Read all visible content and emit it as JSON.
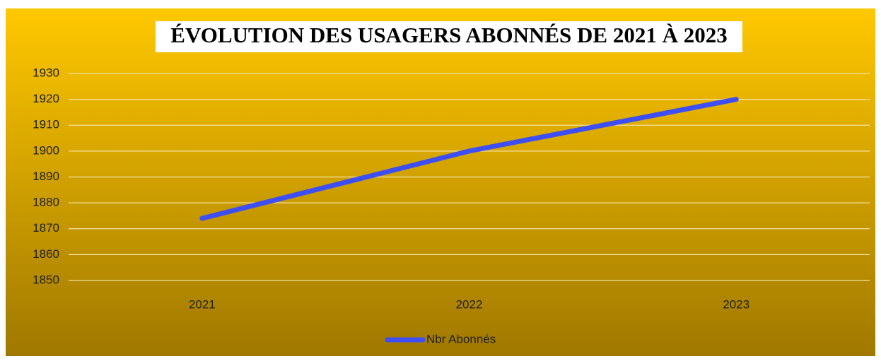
{
  "chart_data": {
    "type": "line",
    "title": "ÉVOLUTION DES USAGERS ABONNÉS DE 2021 À 2023",
    "categories": [
      "2021",
      "2022",
      "2023"
    ],
    "series": [
      {
        "name": "Nbr Abonnés",
        "color": "#3d4ef5",
        "values": [
          1874,
          1900,
          1920
        ]
      }
    ],
    "ylim": [
      1850,
      1930
    ],
    "yticks": [
      1850,
      1860,
      1870,
      1880,
      1890,
      1900,
      1910,
      1920,
      1930
    ],
    "grid": true,
    "legend": "bottom"
  }
}
